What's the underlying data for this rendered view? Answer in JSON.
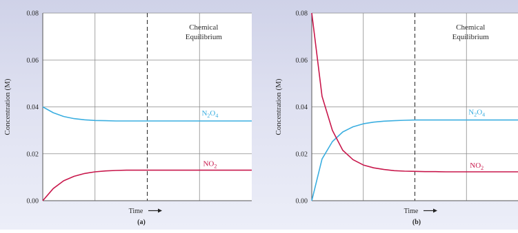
{
  "chart_data": [
    {
      "type": "line",
      "panel_label": "(a)",
      "xlabel": "Time",
      "ylabel": "Concentration (M)",
      "ylim": [
        0,
        0.08
      ],
      "y_ticks": [
        "0.08",
        "0.06",
        "0.04",
        "0.02",
        "0.00"
      ],
      "annotation": [
        "Chemical",
        "Equilibrium"
      ],
      "grid": true,
      "x": [
        0,
        0.05,
        0.1,
        0.15,
        0.2,
        0.25,
        0.3,
        0.35,
        0.4,
        0.45,
        0.5,
        0.55,
        0.6,
        0.65,
        0.7,
        0.75,
        0.8,
        0.85,
        0.9,
        0.95,
        1.0
      ],
      "equilibrium_x": 0.5,
      "series": [
        {
          "name": "N2O4",
          "label_main": "N",
          "label_sub1": "2",
          "label_mid": "O",
          "label_sub2": "4",
          "color": "#3aaee0",
          "values": [
            0.04,
            0.0375,
            0.0359,
            0.035,
            0.0345,
            0.0342,
            0.0341,
            0.034,
            0.034,
            0.034,
            0.034,
            0.034,
            0.034,
            0.034,
            0.034,
            0.034,
            0.034,
            0.034,
            0.034,
            0.034,
            0.034
          ]
        },
        {
          "name": "NO2",
          "label_main": "NO",
          "label_sub1": "2",
          "label_mid": "",
          "label_sub2": "",
          "color": "#c8174b",
          "values": [
            0.0,
            0.0052,
            0.0085,
            0.0104,
            0.0116,
            0.0123,
            0.0127,
            0.0129,
            0.013,
            0.013,
            0.013,
            0.013,
            0.013,
            0.013,
            0.013,
            0.013,
            0.013,
            0.013,
            0.013,
            0.013,
            0.013
          ]
        }
      ]
    },
    {
      "type": "line",
      "panel_label": "(b)",
      "xlabel": "Time",
      "ylabel": "Concentration (M)",
      "ylim": [
        0,
        0.08
      ],
      "y_ticks": [
        "0.08",
        "0.06",
        "0.04",
        "0.02",
        "0.00"
      ],
      "annotation": [
        "Chemical",
        "Equilibrium"
      ],
      "grid": true,
      "x": [
        0,
        0.05,
        0.1,
        0.15,
        0.2,
        0.25,
        0.3,
        0.35,
        0.4,
        0.45,
        0.5,
        0.55,
        0.6,
        0.65,
        0.7,
        0.75,
        0.8,
        0.85,
        0.9,
        0.95,
        1.0
      ],
      "equilibrium_x": 0.5,
      "series": [
        {
          "name": "N2O4",
          "label_main": "N",
          "label_sub1": "2",
          "label_mid": "O",
          "label_sub2": "4",
          "color": "#3aaee0",
          "values": [
            0.0,
            0.0178,
            0.0252,
            0.0293,
            0.0315,
            0.0328,
            0.0335,
            0.0339,
            0.0341,
            0.0343,
            0.0344,
            0.0344,
            0.0344,
            0.0344,
            0.0344,
            0.0344,
            0.0344,
            0.0344,
            0.0344,
            0.0344,
            0.0344
          ]
        },
        {
          "name": "NO2",
          "label_main": "NO",
          "label_sub1": "2",
          "label_mid": "",
          "label_sub2": "",
          "color": "#c8174b",
          "values": [
            0.08,
            0.0445,
            0.03,
            0.0215,
            0.0175,
            0.0152,
            0.014,
            0.0133,
            0.0128,
            0.0126,
            0.0125,
            0.0124,
            0.0124,
            0.0123,
            0.0123,
            0.0123,
            0.0123,
            0.0123,
            0.0123,
            0.0123,
            0.0123
          ]
        }
      ]
    }
  ]
}
